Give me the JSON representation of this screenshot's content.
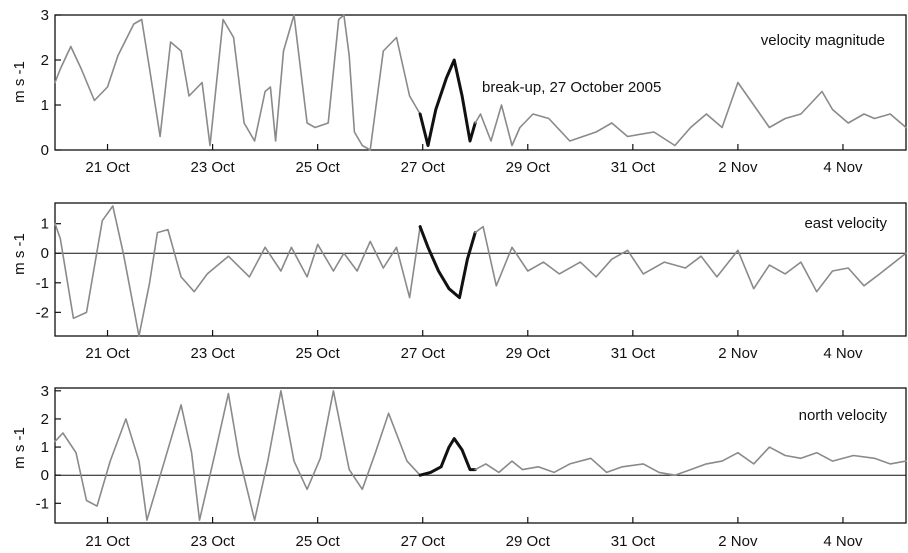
{
  "chart_data": [
    {
      "type": "line",
      "title": "velocity magnitude",
      "ylabel": "m s -1",
      "ylim": [
        0,
        3
      ],
      "yticks": [
        0,
        1,
        2,
        3
      ],
      "x_range": [
        20,
        36.2
      ],
      "xtick_positions": [
        21,
        23,
        25,
        27,
        29,
        31,
        33,
        35
      ],
      "xtick_labels": [
        "21 Oct",
        "23 Oct",
        "25 Oct",
        "27 Oct",
        "29 Oct",
        "31 Oct",
        "2 Nov",
        "4 Nov"
      ],
      "zero_line": false,
      "annotation": "break-up, 27 October 2005",
      "series": [
        {
          "color": "#8a8a8a",
          "x": [
            20.0,
            20.1,
            20.3,
            20.5,
            20.75,
            21.0,
            21.2,
            21.5,
            21.65,
            21.8,
            22.0,
            22.2,
            22.4,
            22.55,
            22.8,
            22.95,
            23.2,
            23.4,
            23.6,
            23.8,
            24.0,
            24.1,
            24.2,
            24.35,
            24.55,
            24.8,
            24.95,
            25.2,
            25.4,
            25.5,
            25.6,
            25.7,
            25.85,
            26.0,
            26.25,
            26.5,
            26.75,
            26.95
          ],
          "y": [
            1.5,
            1.8,
            2.3,
            1.8,
            1.1,
            1.4,
            2.1,
            2.8,
            2.9,
            1.8,
            0.3,
            2.4,
            2.2,
            1.2,
            1.5,
            0.1,
            2.9,
            2.5,
            0.6,
            0.2,
            1.3,
            1.4,
            0.2,
            2.2,
            3.0,
            0.6,
            0.5,
            0.6,
            2.9,
            3.0,
            2.1,
            0.4,
            0.1,
            0.0,
            2.2,
            2.5,
            1.2,
            0.8
          ]
        },
        {
          "color": "#111111",
          "x": [
            26.95,
            27.1,
            27.25,
            27.45,
            27.6,
            27.75,
            27.9,
            28.0
          ],
          "y": [
            0.8,
            0.1,
            0.9,
            1.6,
            2.0,
            1.2,
            0.2,
            0.6
          ]
        },
        {
          "color": "#8a8a8a",
          "x": [
            28.0,
            28.1,
            28.3,
            28.5,
            28.7,
            28.85,
            29.1,
            29.4,
            29.8,
            30.3,
            30.6,
            30.9,
            31.4,
            31.8,
            32.1,
            32.4,
            32.7,
            33.0,
            33.3,
            33.6,
            33.9,
            34.2,
            34.6,
            34.8,
            35.1,
            35.4,
            35.6,
            35.9,
            36.2
          ],
          "y": [
            0.6,
            0.8,
            0.2,
            1.0,
            0.1,
            0.5,
            0.8,
            0.7,
            0.2,
            0.4,
            0.6,
            0.3,
            0.4,
            0.1,
            0.5,
            0.8,
            0.5,
            1.5,
            1.0,
            0.5,
            0.7,
            0.8,
            1.3,
            0.9,
            0.6,
            0.8,
            0.7,
            0.8,
            0.5
          ]
        }
      ]
    },
    {
      "type": "line",
      "title": "east velocity",
      "ylabel": "m s -1",
      "ylim": [
        -2.8,
        1.7
      ],
      "yticks": [
        -2,
        -1,
        0,
        1
      ],
      "x_range": [
        20,
        36.2
      ],
      "xtick_positions": [
        21,
        23,
        25,
        27,
        29,
        31,
        33,
        35
      ],
      "xtick_labels": [
        "21 Oct",
        "23 Oct",
        "25 Oct",
        "27 Oct",
        "29 Oct",
        "31 Oct",
        "2 Nov",
        "4 Nov"
      ],
      "zero_line": true,
      "series": [
        {
          "color": "#8a8a8a",
          "x": [
            20.0,
            20.1,
            20.35,
            20.6,
            20.9,
            21.1,
            21.3,
            21.6,
            21.8,
            21.95,
            22.15,
            22.4,
            22.65,
            22.9,
            23.3,
            23.7,
            24.0,
            24.3,
            24.5,
            24.8,
            25.0,
            25.3,
            25.5,
            25.75,
            26.0,
            26.25,
            26.5,
            26.75,
            26.95
          ],
          "y": [
            1.0,
            0.5,
            -2.2,
            -2.0,
            1.1,
            1.6,
            0.0,
            -2.8,
            -1.0,
            0.7,
            0.8,
            -0.8,
            -1.3,
            -0.7,
            -0.1,
            -0.8,
            0.2,
            -0.6,
            0.2,
            -0.8,
            0.3,
            -0.6,
            0.0,
            -0.6,
            0.4,
            -0.5,
            0.2,
            -1.5,
            0.9
          ]
        },
        {
          "color": "#111111",
          "x": [
            26.95,
            27.1,
            27.3,
            27.5,
            27.7,
            27.85,
            28.0
          ],
          "y": [
            0.9,
            0.2,
            -0.6,
            -1.2,
            -1.5,
            -0.2,
            0.7
          ]
        },
        {
          "color": "#8a8a8a",
          "x": [
            28.0,
            28.15,
            28.4,
            28.7,
            29.0,
            29.3,
            29.6,
            30.0,
            30.3,
            30.6,
            30.9,
            31.2,
            31.6,
            32.0,
            32.3,
            32.6,
            33.0,
            33.3,
            33.6,
            33.9,
            34.2,
            34.5,
            34.8,
            35.1,
            35.4,
            35.7,
            36.2
          ],
          "y": [
            0.7,
            0.9,
            -1.1,
            0.2,
            -0.6,
            -0.3,
            -0.7,
            -0.3,
            -0.8,
            -0.2,
            0.1,
            -0.7,
            -0.3,
            -0.5,
            -0.1,
            -0.8,
            0.1,
            -1.2,
            -0.4,
            -0.7,
            -0.3,
            -1.3,
            -0.6,
            -0.5,
            -1.1,
            -0.7,
            0.0
          ]
        }
      ]
    },
    {
      "type": "line",
      "title": "north velocity",
      "ylabel": "m s -1",
      "ylim": [
        -1.7,
        3.1
      ],
      "yticks": [
        -1,
        0,
        1,
        2,
        3
      ],
      "x_range": [
        20,
        36.2
      ],
      "xtick_positions": [
        21,
        23,
        25,
        27,
        29,
        31,
        33,
        35
      ],
      "xtick_labels": [
        "21 Oct",
        "23 Oct",
        "25 Oct",
        "27 Oct",
        "29 Oct",
        "31 Oct",
        "2 Nov",
        "4 Nov"
      ],
      "zero_line": true,
      "series": [
        {
          "color": "#8a8a8a",
          "x": [
            20.0,
            20.15,
            20.4,
            20.6,
            20.8,
            21.05,
            21.35,
            21.6,
            21.75,
            22.1,
            22.4,
            22.6,
            22.75,
            23.05,
            23.3,
            23.5,
            23.8,
            24.05,
            24.3,
            24.55,
            24.8,
            25.05,
            25.3,
            25.6,
            25.85,
            26.1,
            26.35,
            26.7,
            26.95
          ],
          "y": [
            1.2,
            1.5,
            0.8,
            -0.9,
            -1.1,
            0.5,
            2.0,
            0.5,
            -1.6,
            0.6,
            2.5,
            0.8,
            -1.6,
            0.8,
            2.9,
            0.7,
            -1.6,
            0.5,
            3.0,
            0.5,
            -0.5,
            0.6,
            3.0,
            0.2,
            -0.5,
            0.8,
            2.2,
            0.5,
            0.0
          ]
        },
        {
          "color": "#111111",
          "x": [
            26.95,
            27.15,
            27.35,
            27.5,
            27.6,
            27.75,
            27.9,
            28.0
          ],
          "y": [
            0.0,
            0.1,
            0.3,
            1.0,
            1.3,
            0.9,
            0.2,
            0.2
          ]
        },
        {
          "color": "#8a8a8a",
          "x": [
            28.0,
            28.2,
            28.45,
            28.7,
            28.9,
            29.2,
            29.5,
            29.8,
            30.2,
            30.5,
            30.8,
            31.2,
            31.5,
            31.8,
            32.1,
            32.4,
            32.7,
            33.0,
            33.3,
            33.6,
            33.9,
            34.2,
            34.5,
            34.8,
            35.2,
            35.6,
            35.9,
            36.2
          ],
          "y": [
            0.2,
            0.4,
            0.1,
            0.5,
            0.2,
            0.3,
            0.1,
            0.4,
            0.6,
            0.1,
            0.3,
            0.4,
            0.1,
            0.0,
            0.2,
            0.4,
            0.5,
            0.8,
            0.4,
            1.0,
            0.7,
            0.6,
            0.8,
            0.5,
            0.7,
            0.6,
            0.4,
            0.5
          ]
        }
      ]
    }
  ]
}
